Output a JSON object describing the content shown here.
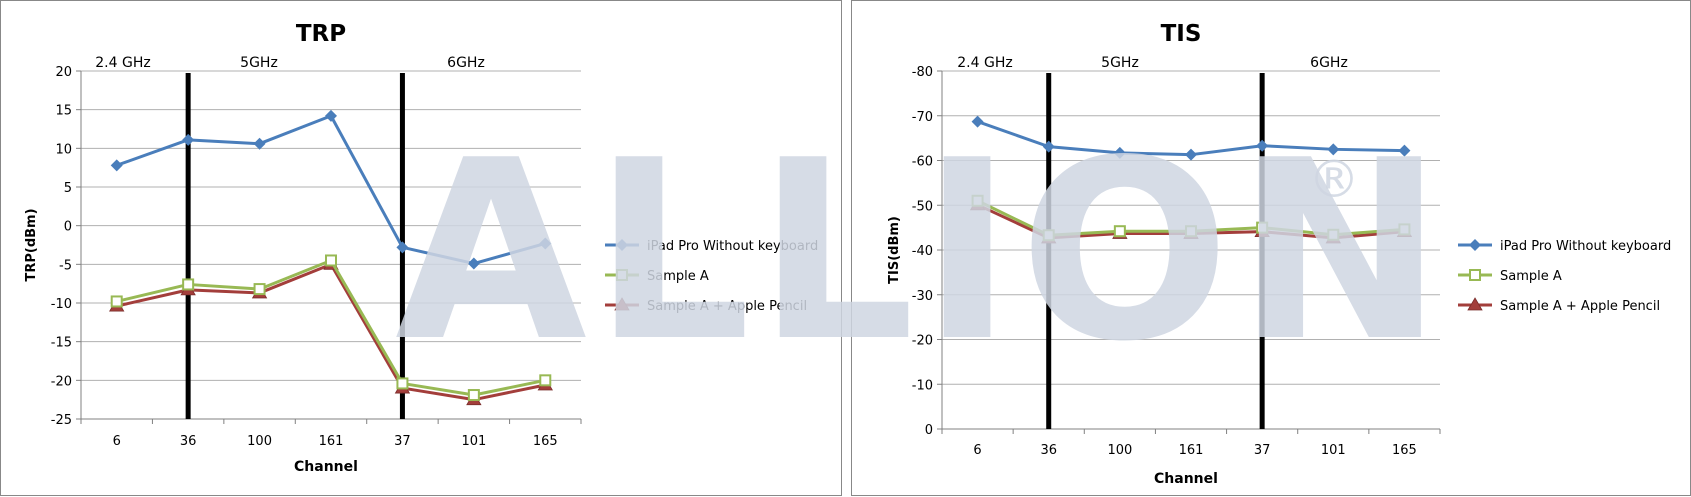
{
  "colors": {
    "series_blue": "#4a7ebb",
    "series_green": "#98b954",
    "series_red": "#a33e3b",
    "band_divider": "#000000",
    "gridline": "#b0b0b0"
  },
  "watermark": {
    "text": "ALLION",
    "mark": "®"
  },
  "chart_data": [
    {
      "type": "line",
      "title": "TRP",
      "xlabel": "Channel",
      "ylabel": "TRP(dBm)",
      "categories": [
        "6",
        "36",
        "100",
        "161",
        "37",
        "101",
        "165"
      ],
      "ylim": [
        -25,
        20
      ],
      "yticks": [
        20,
        15,
        10,
        5,
        0,
        -5,
        -10,
        -15,
        -20,
        -25
      ],
      "ytick_labels": [
        "20",
        "15",
        "10",
        "5",
        "0",
        "-5",
        "-10",
        "-15",
        "-20",
        "-25"
      ],
      "grid": true,
      "legend": "right",
      "bands": [
        "2.4 GHz",
        "5GHz",
        "6GHz"
      ],
      "series": [
        {
          "name": "iPad Pro Without keyboard",
          "marker": "diamond",
          "color": "#4a7ebb",
          "values": [
            7.8,
            11.1,
            10.6,
            14.2,
            -2.8,
            -4.9,
            -2.3
          ]
        },
        {
          "name": "Sample A",
          "marker": "square",
          "color": "#98b954",
          "values": [
            -9.8,
            -7.6,
            -8.2,
            -4.5,
            -20.4,
            -21.9,
            -20.0
          ]
        },
        {
          "name": "Sample A + Apple Pencil",
          "marker": "triangle",
          "color": "#a33e3b",
          "values": [
            -10.4,
            -8.3,
            -8.7,
            -5.0,
            -21.0,
            -22.5,
            -20.6
          ]
        }
      ]
    },
    {
      "type": "line",
      "title": "TIS",
      "xlabel": "Channel",
      "ylabel": "TIS(dBm)",
      "categories": [
        "6",
        "36",
        "100",
        "161",
        "37",
        "101",
        "165"
      ],
      "ylim": [
        0,
        -80
      ],
      "yticks": [
        -80,
        -70,
        -60,
        -50,
        -40,
        -30,
        -20,
        -10,
        0
      ],
      "ytick_labels": [
        "-80",
        "-70",
        "-60",
        "-50",
        "-40",
        "-30",
        "-20",
        "-10",
        "0"
      ],
      "grid": true,
      "legend": "right",
      "bands": [
        "2.4 GHz",
        "5GHz",
        "6GHz"
      ],
      "series": [
        {
          "name": "iPad Pro Without keyboard",
          "marker": "diamond",
          "color": "#4a7ebb",
          "values": [
            -68.7,
            -63.1,
            -61.7,
            -61.3,
            -63.3,
            -62.5,
            -62.2
          ]
        },
        {
          "name": "Sample A",
          "marker": "square",
          "color": "#98b954",
          "values": [
            -51.0,
            -43.3,
            -44.2,
            -44.2,
            -45.0,
            -43.4,
            -44.6
          ]
        },
        {
          "name": "Sample A + Apple Pencil",
          "marker": "triangle",
          "color": "#a33e3b",
          "values": [
            -50.1,
            -42.7,
            -43.7,
            -43.7,
            -44.1,
            -42.7,
            -44.1
          ]
        }
      ]
    }
  ]
}
